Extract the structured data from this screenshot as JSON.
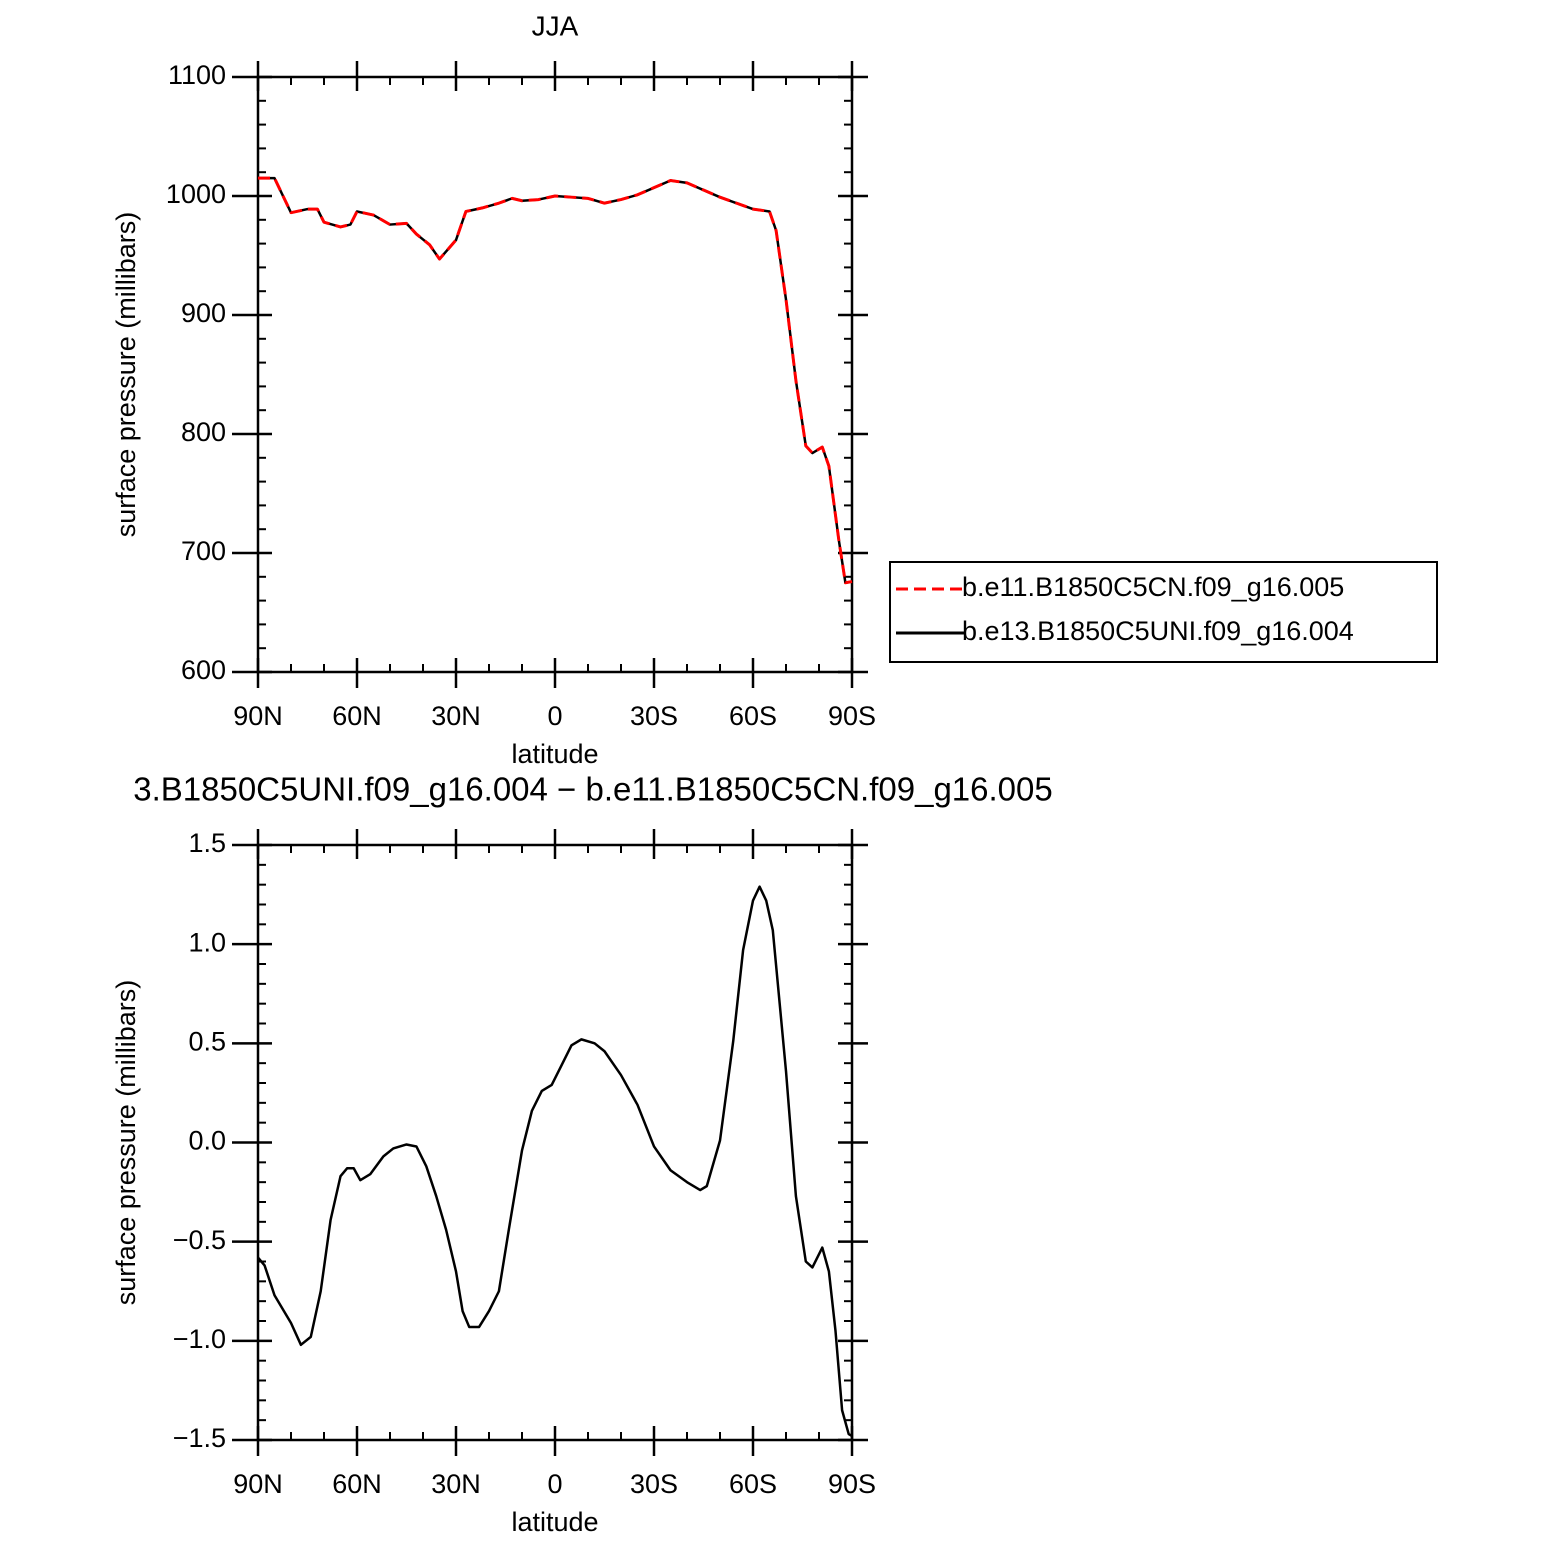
{
  "chart_data": [
    {
      "type": "line",
      "title": "JJA",
      "xlabel": "latitude",
      "ylabel": "surface pressure (millibars)",
      "x": [
        90,
        85,
        80,
        75,
        72,
        70,
        65,
        62,
        60,
        55,
        50,
        45,
        42,
        38,
        35,
        30,
        27,
        22,
        17,
        13,
        10,
        5,
        0,
        -5,
        -10,
        -15,
        -20,
        -25,
        -30,
        -35,
        -40,
        -45,
        -50,
        -55,
        -60,
        -65,
        -67,
        -70,
        -73,
        -76,
        -78,
        -81,
        -83,
        -86,
        -88,
        -90
      ],
      "series": [
        {
          "name": "b.e11.B1850C5CN.f09_g16.005",
          "color": "#ff0000",
          "linestyle": "dashed",
          "values": [
            1015,
            1015,
            986,
            989,
            989,
            978,
            974,
            976,
            987,
            984,
            976,
            977,
            968,
            959,
            947,
            963,
            987,
            990,
            994,
            998,
            996,
            997,
            1000,
            999,
            998,
            994,
            997,
            1001,
            1007,
            1013,
            1011,
            1005,
            999,
            994,
            989,
            987,
            971,
            913,
            845,
            790,
            784,
            789,
            773,
            711,
            675,
            676
          ]
        },
        {
          "name": "b.e13.B1850C5UNI.f09_g16.004",
          "color": "#000000",
          "linestyle": "solid",
          "values": [
            1015,
            1015,
            986,
            989,
            989,
            978,
            974,
            976,
            987,
            984,
            976,
            977,
            968,
            959,
            947,
            963,
            987,
            990,
            994,
            998,
            996,
            997,
            1000,
            999,
            998,
            994,
            997,
            1001,
            1007,
            1013,
            1011,
            1005,
            999,
            994,
            989,
            987,
            971,
            913,
            845,
            790,
            784,
            789,
            773,
            711,
            675,
            676
          ]
        }
      ],
      "xlim": [
        90,
        -90
      ],
      "xticks": [
        {
          "value": 90,
          "label": "90N"
        },
        {
          "value": 60,
          "label": "60N"
        },
        {
          "value": 30,
          "label": "30N"
        },
        0,
        {
          "value": -30,
          "label": "30S"
        },
        {
          "value": -60,
          "label": "60S"
        },
        {
          "value": -90,
          "label": "90S"
        }
      ],
      "ylim": [
        600,
        1100
      ],
      "yticks": [
        600,
        700,
        800,
        900,
        1000,
        1100
      ],
      "legend": "outside-right"
    },
    {
      "type": "line",
      "title": "3.B1850C5UNI.f09_g16.004 − b.e11.B1850C5CN.f09_g16.005",
      "xlabel": "latitude",
      "ylabel": "surface pressure (millibars)",
      "x": [
        90,
        88,
        85,
        80,
        77,
        74,
        71,
        68,
        65,
        63,
        61,
        59,
        56,
        52,
        49,
        45,
        42,
        39,
        36,
        33,
        30,
        28,
        26,
        23,
        20,
        17,
        14,
        10,
        7,
        4,
        1,
        -2,
        -5,
        -8,
        -12,
        -15,
        -20,
        -25,
        -30,
        -35,
        -40,
        -44,
        -46,
        -50,
        -54,
        -57,
        -60,
        -62,
        -64,
        -66,
        -70,
        -73,
        -76,
        -78,
        -81,
        -83,
        -85,
        -87,
        -89,
        -90
      ],
      "values": [
        -0.58,
        -0.62,
        -0.77,
        -0.91,
        -1.02,
        -0.98,
        -0.75,
        -0.39,
        -0.17,
        -0.13,
        -0.13,
        -0.19,
        -0.16,
        -0.07,
        -0.03,
        -0.01,
        -0.02,
        -0.12,
        -0.27,
        -0.44,
        -0.65,
        -0.85,
        -0.93,
        -0.93,
        -0.85,
        -0.75,
        -0.44,
        -0.04,
        0.16,
        0.26,
        0.29,
        0.39,
        0.49,
        0.52,
        0.5,
        0.46,
        0.34,
        0.19,
        -0.02,
        -0.14,
        -0.2,
        -0.24,
        -0.22,
        0.01,
        0.51,
        0.97,
        1.22,
        1.29,
        1.22,
        1.07,
        0.36,
        -0.27,
        -0.6,
        -0.63,
        -0.53,
        -0.65,
        -0.95,
        -1.35,
        -1.47,
        -1.48
      ],
      "color": "#000000",
      "xlim": [
        90,
        -90
      ],
      "xticks": [
        {
          "value": 90,
          "label": "90N"
        },
        {
          "value": 60,
          "label": "60N"
        },
        {
          "value": 30,
          "label": "30N"
        },
        0,
        {
          "value": -30,
          "label": "30S"
        },
        {
          "value": -60,
          "label": "60S"
        },
        {
          "value": -90,
          "label": "90S"
        }
      ],
      "ylim": [
        -1.5,
        1.5
      ],
      "yticks": [
        {
          "value": -1.5,
          "label": "−1.5"
        },
        {
          "value": -1,
          "label": "−1.0"
        },
        {
          "value": -0.5,
          "label": "−0.5"
        },
        {
          "value": 0,
          "label": "0.0"
        },
        {
          "value": 0.5,
          "label": "0.5"
        },
        {
          "value": 1,
          "label": "1.0"
        },
        1.5
      ]
    }
  ]
}
